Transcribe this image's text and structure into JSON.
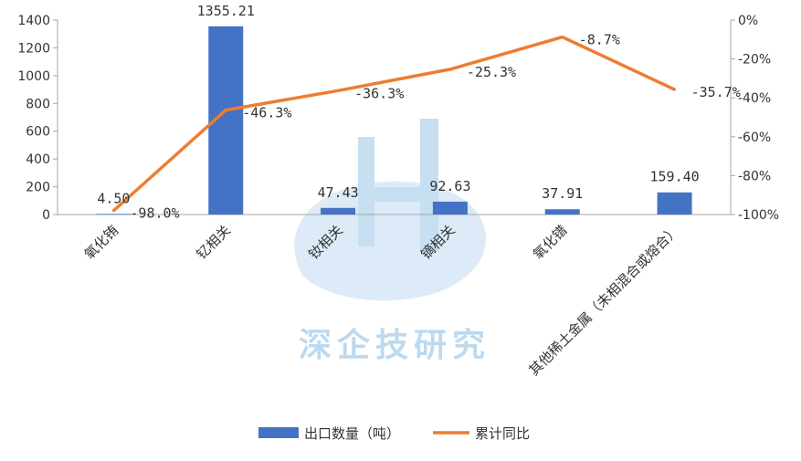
{
  "chart_data": {
    "type": "bar",
    "categories": [
      "氧化铕",
      "钇相关",
      "钕相关",
      "镝相关",
      "氧化镨",
      "其他稀土金属（未相混合或熔合）"
    ],
    "series": [
      {
        "name": "出口数量（吨）",
        "type": "bar",
        "axis": "left",
        "values": [
          4.5,
          1355.21,
          47.43,
          92.63,
          37.91,
          159.4
        ],
        "labels": [
          "4.50",
          "1355.21",
          "47.43",
          "92.63",
          "37.91",
          "159.40"
        ],
        "color": "#4472c4"
      },
      {
        "name": "累计同比",
        "type": "line",
        "axis": "right",
        "values": [
          -98.0,
          -46.3,
          -36.3,
          -25.3,
          -8.7,
          -35.7
        ],
        "labels": [
          "-98.0%",
          "-46.3%",
          "-36.3%",
          "-25.3%",
          "-8.7%",
          "-35.7%"
        ],
        "color": "#ed7d31"
      }
    ],
    "y_left": {
      "lim": [
        0,
        1400
      ],
      "ticks": [
        "0",
        "200",
        "400",
        "600",
        "800",
        "1000",
        "1200",
        "1400"
      ]
    },
    "y_right": {
      "lim": [
        -100,
        0
      ],
      "ticks": [
        "-100%",
        "-80%",
        "-60%",
        "-40%",
        "-20%",
        "0%"
      ]
    },
    "legend_position": "bottom",
    "grid": false,
    "watermark": "深企技研究"
  }
}
